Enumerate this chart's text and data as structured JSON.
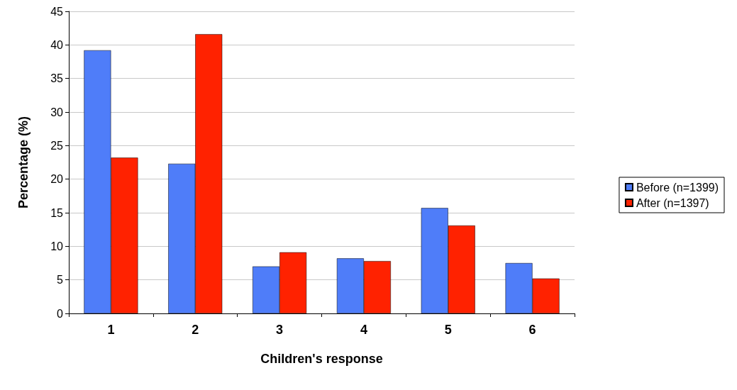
{
  "chart_data": {
    "type": "bar",
    "xlabel": "Children's response",
    "ylabel": "Percentage (%)",
    "categories": [
      "1",
      "2",
      "3",
      "4",
      "5",
      "6"
    ],
    "series": [
      {
        "name": "Before (n=1399)",
        "color": "#4f7df9",
        "values": [
          39.2,
          22.3,
          7.0,
          8.2,
          15.7,
          7.5
        ]
      },
      {
        "name": "After (n=1397)",
        "color": "#ff2200",
        "values": [
          23.2,
          41.6,
          9.1,
          7.8,
          13.1,
          5.2
        ]
      }
    ],
    "ylim": [
      0,
      45
    ],
    "yticks": [
      0,
      5,
      10,
      15,
      20,
      25,
      30,
      35,
      40,
      45
    ],
    "grid": "y",
    "legend": "right"
  }
}
